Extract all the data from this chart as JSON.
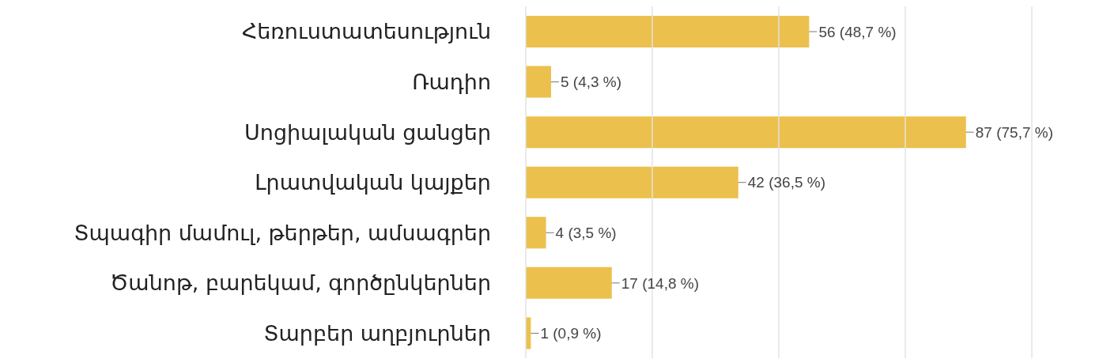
{
  "chart_data": {
    "type": "bar",
    "orientation": "horizontal",
    "categories": [
      "Հեռուստատեսություն",
      "Ռադիո",
      "Սոցիալական ցանցեր",
      "Լրատվական կայքեր",
      "Տպագիր մամուլ, թերթեր, ամսագրեր",
      "Ծանոթ, բարեկամ, գործընկերներ",
      "Տարբեր աղբյուրներ"
    ],
    "values": [
      56,
      5,
      87,
      42,
      4,
      17,
      1
    ],
    "value_labels": [
      "56 (48,7 %)",
      "5 (4,3 %)",
      "87 (75,7 %)",
      "42 (36,5 %)",
      "4 (3,5 %)",
      "17 (14,8 %)",
      "1 (0,9 %)"
    ],
    "color": "#ecc04c",
    "xlim": [
      0,
      100
    ],
    "xticks": [
      {
        "value": 0,
        "label": null
      },
      {
        "value": 25,
        "label": null
      },
      {
        "value": 50,
        "label": null
      },
      {
        "value": 75,
        "label": null
      },
      {
        "value": 100,
        "label": null
      }
    ],
    "grid": "x",
    "tick_labels": "y"
  }
}
